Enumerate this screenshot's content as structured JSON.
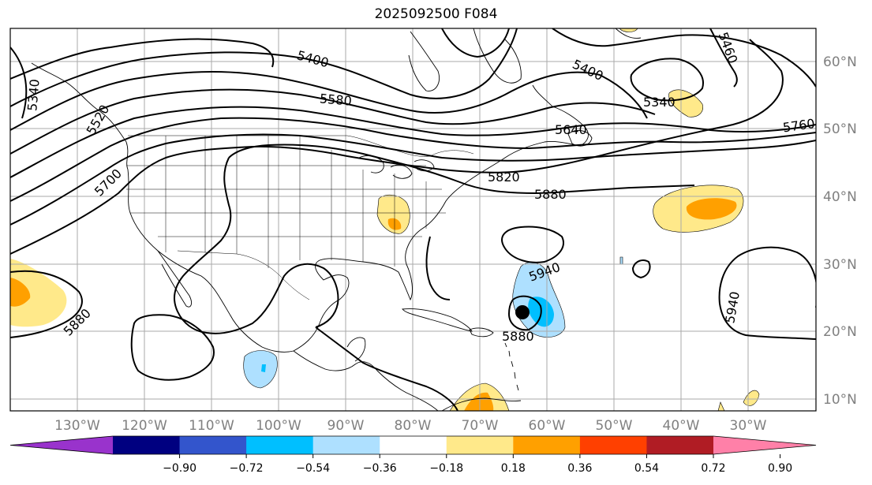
{
  "title": "2025092500 F084",
  "lat_labels": [
    "60°N",
    "50°N",
    "40°N",
    "30°N",
    "20°N",
    "10°N"
  ],
  "lon_labels": [
    "130°W",
    "120°W",
    "110°W",
    "100°W",
    "90°W",
    "80°W",
    "70°W",
    "60°W",
    "50°W",
    "40°W",
    "30°W"
  ],
  "contour_labels": [
    "5400",
    "5580",
    "5460",
    "5340",
    "5400",
    "5340",
    "5520",
    "5700",
    "5640",
    "5760",
    "5820",
    "5880",
    "5940",
    "5880",
    "5880",
    "5940"
  ],
  "colorbar": {
    "ticks": [
      "−0.90",
      "−0.72",
      "−0.54",
      "−0.36",
      "−0.18",
      "0.18",
      "0.36",
      "0.54",
      "0.72",
      "0.90"
    ],
    "colors": [
      "#9933cc",
      "#000080",
      "#3355cc",
      "#00bfff",
      "#aee0ff",
      "#ffffff",
      "#ffe98a",
      "#ffa000",
      "#ff4000",
      "#b01c24",
      "#ff80a8"
    ]
  },
  "colors": {
    "contour": "#000000",
    "grid": "#aaaaaa",
    "coast": "#000000"
  }
}
